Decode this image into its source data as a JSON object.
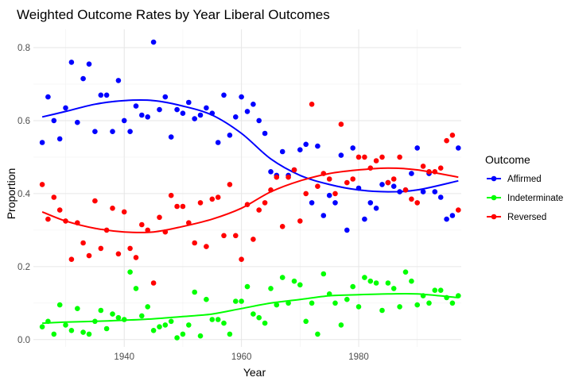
{
  "chart_data": {
    "type": "scatter",
    "title": "Weighted Outcome Rates by Year Liberal Outcomes",
    "xlabel": "Year",
    "ylabel": "Proportion",
    "xlim": [
      1924.5,
      1997.5
    ],
    "ylim": [
      -0.02,
      0.85
    ],
    "x_ticks": [
      1940,
      1960,
      1980
    ],
    "y_ticks": [
      0.0,
      0.2,
      0.4,
      0.6,
      0.8
    ],
    "x_tick_labels": [
      "1940",
      "1960",
      "1980"
    ],
    "y_tick_labels": [
      "0.0",
      "0.2",
      "0.4",
      "0.6",
      "0.8"
    ],
    "grid": true,
    "legend": {
      "title": "Outcome",
      "position": "right"
    },
    "series": [
      {
        "name": "Affirmed",
        "color": "#0000ff",
        "points": [
          [
            1926,
            0.54
          ],
          [
            1927,
            0.665
          ],
          [
            1928,
            0.6
          ],
          [
            1929,
            0.55
          ],
          [
            1930,
            0.635
          ],
          [
            1931,
            0.76
          ],
          [
            1932,
            0.595
          ],
          [
            1933,
            0.715
          ],
          [
            1934,
            0.755
          ],
          [
            1935,
            0.57
          ],
          [
            1936,
            0.67
          ],
          [
            1937,
            0.67
          ],
          [
            1938,
            0.57
          ],
          [
            1939,
            0.71
          ],
          [
            1940,
            0.6
          ],
          [
            1941,
            0.57
          ],
          [
            1942,
            0.64
          ],
          [
            1943,
            0.615
          ],
          [
            1944,
            0.61
          ],
          [
            1945,
            0.815
          ],
          [
            1946,
            0.63
          ],
          [
            1947,
            0.665
          ],
          [
            1948,
            0.555
          ],
          [
            1949,
            0.63
          ],
          [
            1950,
            0.62
          ],
          [
            1951,
            0.65
          ],
          [
            1952,
            0.605
          ],
          [
            1953,
            0.615
          ],
          [
            1954,
            0.635
          ],
          [
            1955,
            0.62
          ],
          [
            1956,
            0.54
          ],
          [
            1957,
            0.67
          ],
          [
            1958,
            0.56
          ],
          [
            1959,
            0.61
          ],
          [
            1960,
            0.665
          ],
          [
            1961,
            0.625
          ],
          [
            1962,
            0.645
          ],
          [
            1963,
            0.6
          ],
          [
            1964,
            0.565
          ],
          [
            1965,
            0.46
          ],
          [
            1966,
            0.45
          ],
          [
            1967,
            0.515
          ],
          [
            1968,
            0.45
          ],
          [
            1969,
            0.465
          ],
          [
            1970,
            0.52
          ],
          [
            1971,
            0.535
          ],
          [
            1972,
            0.375
          ],
          [
            1973,
            0.53
          ],
          [
            1974,
            0.34
          ],
          [
            1975,
            0.395
          ],
          [
            1976,
            0.375
          ],
          [
            1977,
            0.505
          ],
          [
            1978,
            0.3
          ],
          [
            1979,
            0.525
          ],
          [
            1980,
            0.415
          ],
          [
            1981,
            0.33
          ],
          [
            1982,
            0.375
          ],
          [
            1983,
            0.36
          ],
          [
            1984,
            0.425
          ],
          [
            1985,
            0.43
          ],
          [
            1986,
            0.42
          ],
          [
            1987,
            0.405
          ],
          [
            1988,
            0.41
          ],
          [
            1989,
            0.455
          ],
          [
            1990,
            0.525
          ],
          [
            1991,
            0.405
          ],
          [
            1992,
            0.455
          ],
          [
            1993,
            0.405
          ],
          [
            1994,
            0.39
          ],
          [
            1995,
            0.33
          ],
          [
            1996,
            0.34
          ],
          [
            1997,
            0.525
          ]
        ]
      },
      {
        "name": "Indeterminate",
        "color": "#00ff00",
        "points": [
          [
            1926,
            0.035
          ],
          [
            1927,
            0.05
          ],
          [
            1928,
            0.015
          ],
          [
            1929,
            0.095
          ],
          [
            1930,
            0.04
          ],
          [
            1931,
            0.025
          ],
          [
            1932,
            0.085
          ],
          [
            1933,
            0.02
          ],
          [
            1934,
            0.015
          ],
          [
            1935,
            0.05
          ],
          [
            1936,
            0.08
          ],
          [
            1937,
            0.03
          ],
          [
            1938,
            0.07
          ],
          [
            1939,
            0.06
          ],
          [
            1940,
            0.055
          ],
          [
            1941,
            0.185
          ],
          [
            1942,
            0.14
          ],
          [
            1943,
            0.065
          ],
          [
            1944,
            0.09
          ],
          [
            1945,
            0.025
          ],
          [
            1946,
            0.035
          ],
          [
            1947,
            0.04
          ],
          [
            1948,
            0.05
          ],
          [
            1949,
            0.005
          ],
          [
            1950,
            0.015
          ],
          [
            1951,
            0.04
          ],
          [
            1952,
            0.13
          ],
          [
            1953,
            0.01
          ],
          [
            1954,
            0.11
          ],
          [
            1955,
            0.055
          ],
          [
            1956,
            0.055
          ],
          [
            1957,
            0.045
          ],
          [
            1958,
            0.015
          ],
          [
            1959,
            0.105
          ],
          [
            1960,
            0.105
          ],
          [
            1961,
            0.145
          ],
          [
            1962,
            0.07
          ],
          [
            1963,
            0.06
          ],
          [
            1964,
            0.045
          ],
          [
            1965,
            0.14
          ],
          [
            1966,
            0.095
          ],
          [
            1967,
            0.17
          ],
          [
            1968,
            0.1
          ],
          [
            1969,
            0.16
          ],
          [
            1970,
            0.15
          ],
          [
            1971,
            0.05
          ],
          [
            1972,
            0.1
          ],
          [
            1973,
            0.015
          ],
          [
            1974,
            0.18
          ],
          [
            1975,
            0.125
          ],
          [
            1976,
            0.1
          ],
          [
            1977,
            0.04
          ],
          [
            1978,
            0.11
          ],
          [
            1979,
            0.145
          ],
          [
            1980,
            0.09
          ],
          [
            1981,
            0.17
          ],
          [
            1982,
            0.16
          ],
          [
            1983,
            0.155
          ],
          [
            1984,
            0.08
          ],
          [
            1985,
            0.155
          ],
          [
            1986,
            0.14
          ],
          [
            1987,
            0.09
          ],
          [
            1988,
            0.185
          ],
          [
            1989,
            0.16
          ],
          [
            1990,
            0.095
          ],
          [
            1991,
            0.12
          ],
          [
            1992,
            0.1
          ],
          [
            1993,
            0.135
          ],
          [
            1994,
            0.135
          ],
          [
            1995,
            0.115
          ],
          [
            1996,
            0.1
          ],
          [
            1997,
            0.12
          ]
        ]
      },
      {
        "name": "Reversed",
        "color": "#ff0000",
        "points": [
          [
            1926,
            0.425
          ],
          [
            1927,
            0.33
          ],
          [
            1928,
            0.39
          ],
          [
            1929,
            0.355
          ],
          [
            1930,
            0.325
          ],
          [
            1931,
            0.22
          ],
          [
            1932,
            0.32
          ],
          [
            1933,
            0.265
          ],
          [
            1934,
            0.23
          ],
          [
            1935,
            0.38
          ],
          [
            1936,
            0.25
          ],
          [
            1937,
            0.3
          ],
          [
            1938,
            0.36
          ],
          [
            1939,
            0.235
          ],
          [
            1940,
            0.35
          ],
          [
            1941,
            0.25
          ],
          [
            1942,
            0.225
          ],
          [
            1943,
            0.315
          ],
          [
            1944,
            0.3
          ],
          [
            1945,
            0.155
          ],
          [
            1946,
            0.335
          ],
          [
            1947,
            0.295
          ],
          [
            1948,
            0.395
          ],
          [
            1949,
            0.365
          ],
          [
            1950,
            0.365
          ],
          [
            1951,
            0.32
          ],
          [
            1952,
            0.265
          ],
          [
            1953,
            0.375
          ],
          [
            1954,
            0.255
          ],
          [
            1955,
            0.385
          ],
          [
            1956,
            0.39
          ],
          [
            1957,
            0.285
          ],
          [
            1958,
            0.425
          ],
          [
            1959,
            0.285
          ],
          [
            1960,
            0.22
          ],
          [
            1961,
            0.37
          ],
          [
            1962,
            0.275
          ],
          [
            1963,
            0.355
          ],
          [
            1964,
            0.375
          ],
          [
            1965,
            0.41
          ],
          [
            1966,
            0.445
          ],
          [
            1967,
            0.31
          ],
          [
            1968,
            0.445
          ],
          [
            1969,
            0.465
          ],
          [
            1970,
            0.325
          ],
          [
            1971,
            0.4
          ],
          [
            1972,
            0.645
          ],
          [
            1973,
            0.42
          ],
          [
            1974,
            0.455
          ],
          [
            1975,
            0.44
          ],
          [
            1976,
            0.4
          ],
          [
            1977,
            0.59
          ],
          [
            1978,
            0.43
          ],
          [
            1979,
            0.44
          ],
          [
            1980,
            0.5
          ],
          [
            1981,
            0.5
          ],
          [
            1982,
            0.47
          ],
          [
            1983,
            0.49
          ],
          [
            1984,
            0.5
          ],
          [
            1985,
            0.43
          ],
          [
            1986,
            0.44
          ],
          [
            1987,
            0.5
          ],
          [
            1988,
            0.41
          ],
          [
            1989,
            0.385
          ],
          [
            1990,
            0.375
          ],
          [
            1991,
            0.475
          ],
          [
            1992,
            0.46
          ],
          [
            1993,
            0.46
          ],
          [
            1994,
            0.47
          ],
          [
            1995,
            0.545
          ],
          [
            1996,
            0.56
          ],
          [
            1997,
            0.355
          ]
        ]
      }
    ],
    "smooth": [
      {
        "series": "Affirmed",
        "color": "#0000ff",
        "points": [
          [
            1926,
            0.61
          ],
          [
            1930,
            0.625
          ],
          [
            1935,
            0.645
          ],
          [
            1940,
            0.655
          ],
          [
            1945,
            0.655
          ],
          [
            1950,
            0.64
          ],
          [
            1955,
            0.615
          ],
          [
            1960,
            0.565
          ],
          [
            1965,
            0.495
          ],
          [
            1970,
            0.45
          ],
          [
            1975,
            0.425
          ],
          [
            1980,
            0.41
          ],
          [
            1985,
            0.405
          ],
          [
            1990,
            0.41
          ],
          [
            1997,
            0.435
          ]
        ]
      },
      {
        "series": "Indeterminate",
        "color": "#00ff00",
        "points": [
          [
            1926,
            0.045
          ],
          [
            1930,
            0.048
          ],
          [
            1935,
            0.05
          ],
          [
            1940,
            0.053
          ],
          [
            1945,
            0.057
          ],
          [
            1950,
            0.063
          ],
          [
            1955,
            0.07
          ],
          [
            1960,
            0.085
          ],
          [
            1965,
            0.1
          ],
          [
            1970,
            0.11
          ],
          [
            1975,
            0.12
          ],
          [
            1980,
            0.123
          ],
          [
            1985,
            0.125
          ],
          [
            1990,
            0.125
          ],
          [
            1997,
            0.115
          ]
        ]
      },
      {
        "series": "Reversed",
        "color": "#ff0000",
        "points": [
          [
            1926,
            0.35
          ],
          [
            1930,
            0.325
          ],
          [
            1935,
            0.305
          ],
          [
            1940,
            0.295
          ],
          [
            1945,
            0.295
          ],
          [
            1950,
            0.31
          ],
          [
            1955,
            0.33
          ],
          [
            1960,
            0.36
          ],
          [
            1965,
            0.405
          ],
          [
            1970,
            0.435
          ],
          [
            1975,
            0.455
          ],
          [
            1980,
            0.465
          ],
          [
            1985,
            0.47
          ],
          [
            1990,
            0.465
          ],
          [
            1997,
            0.445
          ]
        ]
      }
    ]
  }
}
